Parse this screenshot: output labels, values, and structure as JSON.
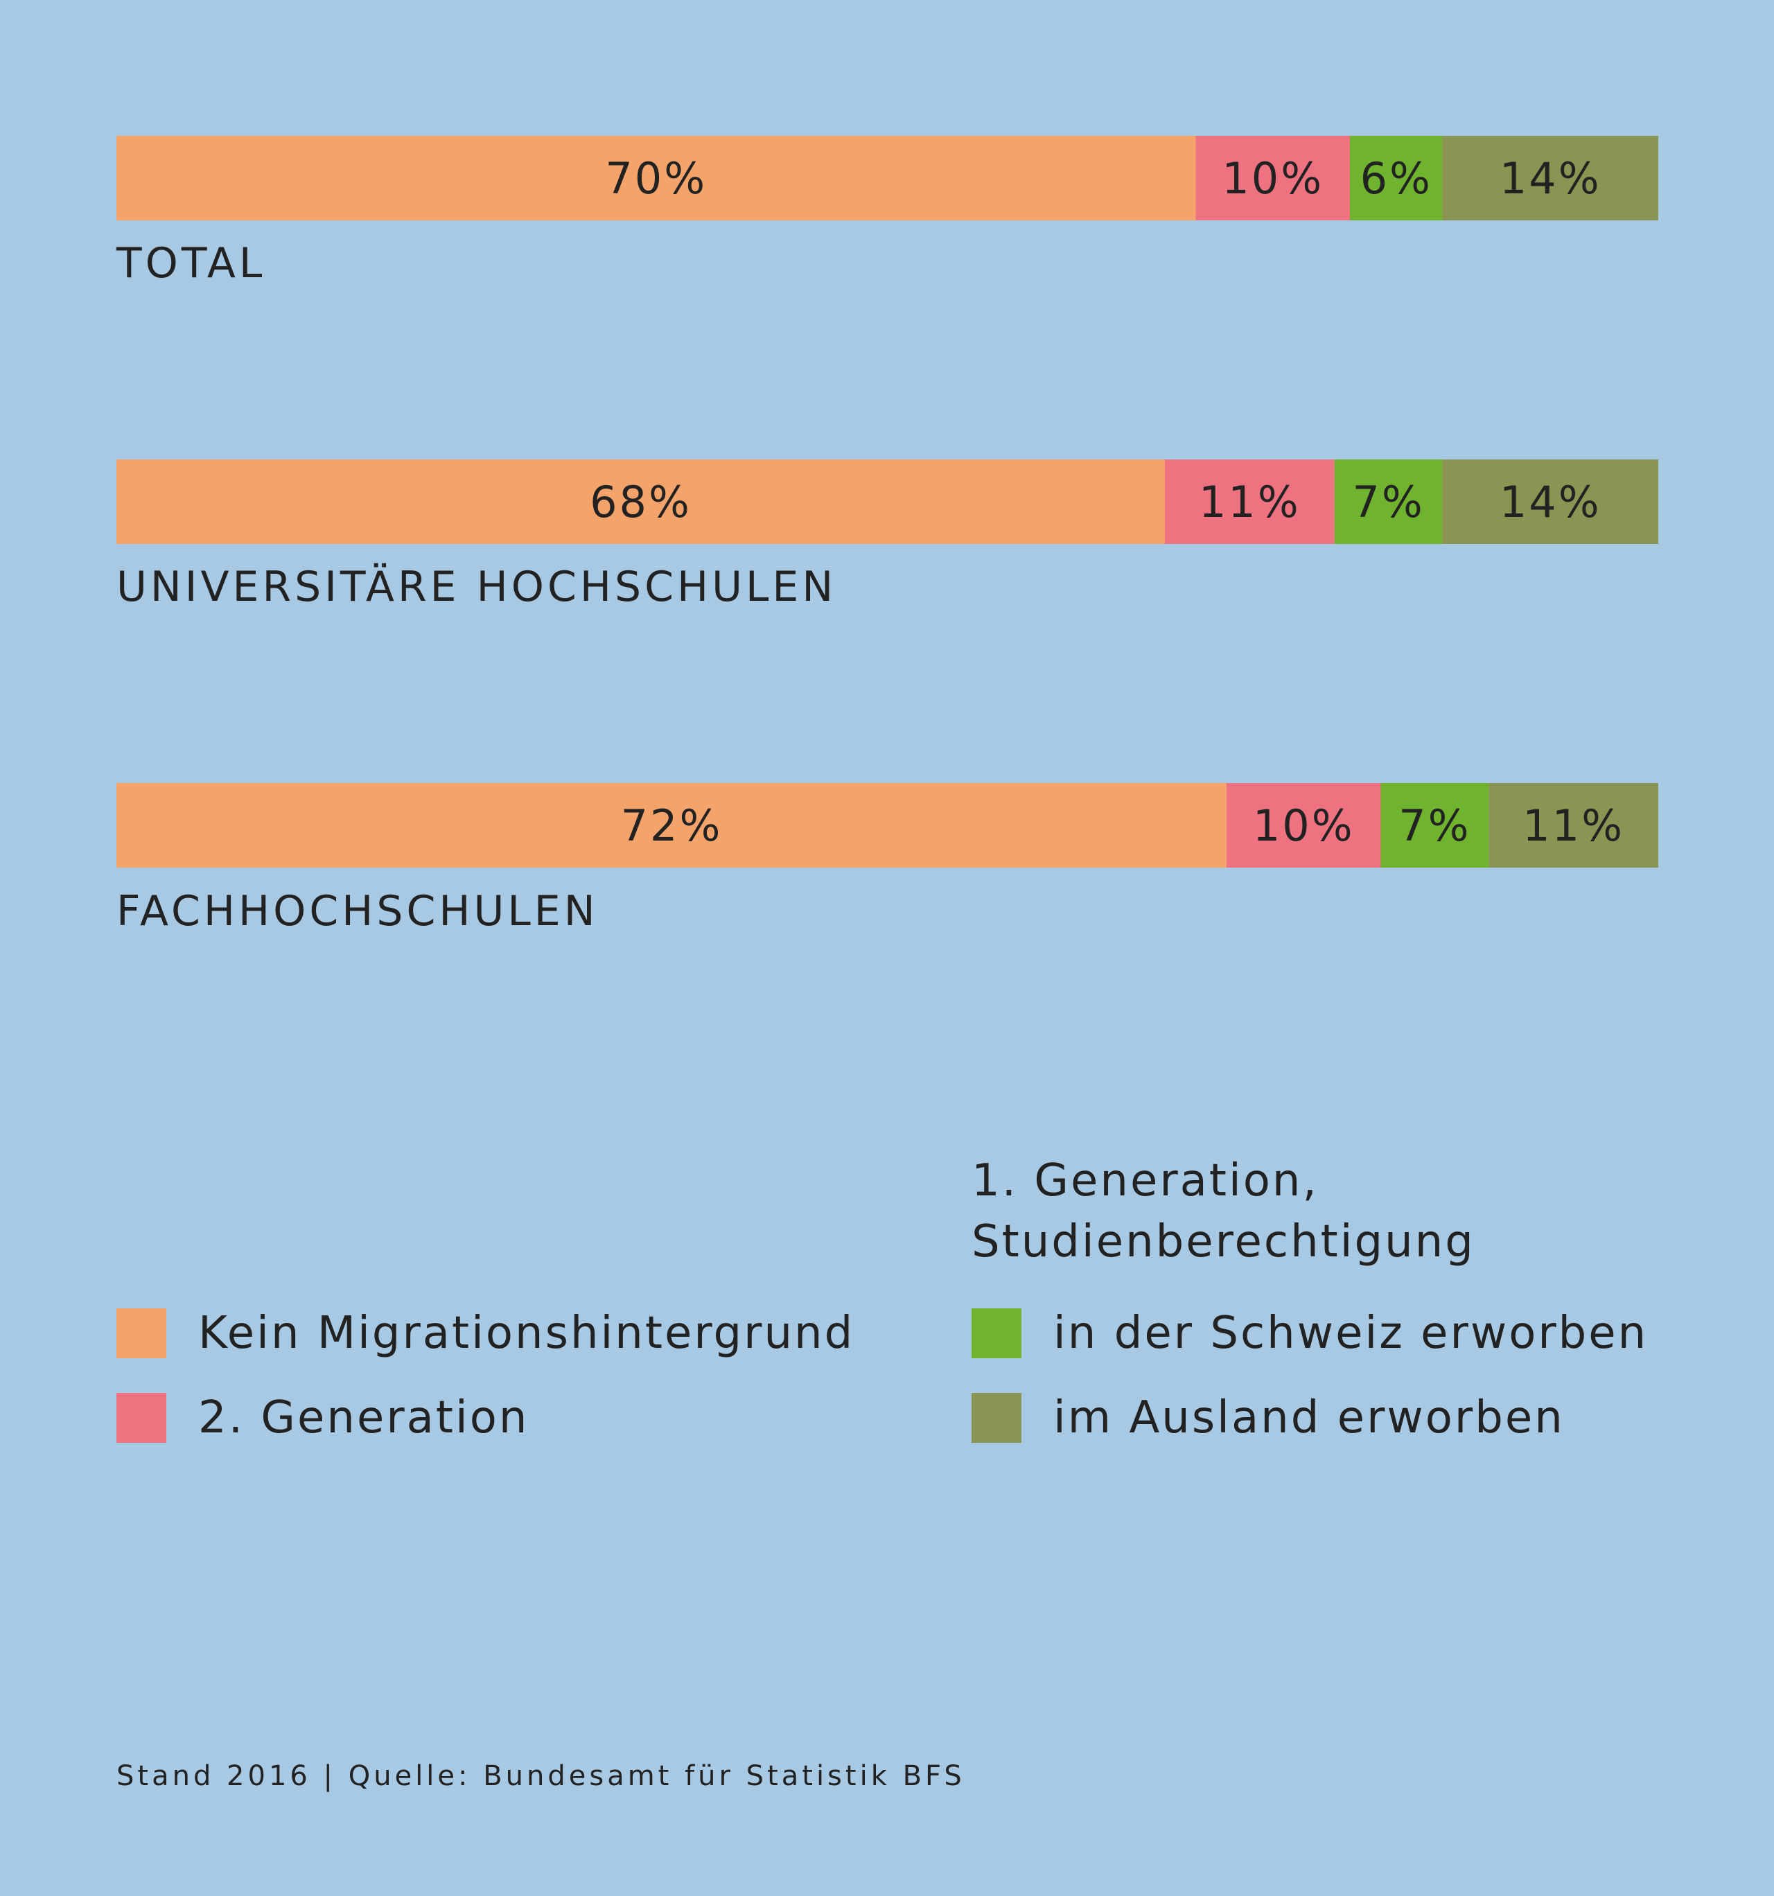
{
  "chart_data": {
    "type": "bar",
    "orientation": "horizontal",
    "stacked": true,
    "categories": [
      "TOTAL",
      "UNIVERSITÄRE HOCHSCHULEN",
      "FACHHOCHSCHULEN"
    ],
    "series": [
      {
        "name": "Kein Migrationshintergrund",
        "color": "#f4a46a",
        "values": [
          70,
          68,
          72
        ]
      },
      {
        "name": "2. Generation",
        "color": "#ef7281",
        "values": [
          10,
          11,
          10
        ]
      },
      {
        "name": "in der Schweiz erworben",
        "color": "#6fb32e",
        "values": [
          6,
          7,
          7
        ]
      },
      {
        "name": "im Ausland erworben",
        "color": "#8c9453",
        "values": [
          14,
          14,
          11
        ]
      }
    ],
    "value_suffix": "%",
    "xlim": [
      0,
      100
    ],
    "grid": false,
    "legend_position": "bottom",
    "legend_group_title": [
      "1. Generation,",
      "Studienberechtigung"
    ]
  },
  "footnote": "Stand 2016 | Quelle: Bundesamt für Statistik BFS"
}
